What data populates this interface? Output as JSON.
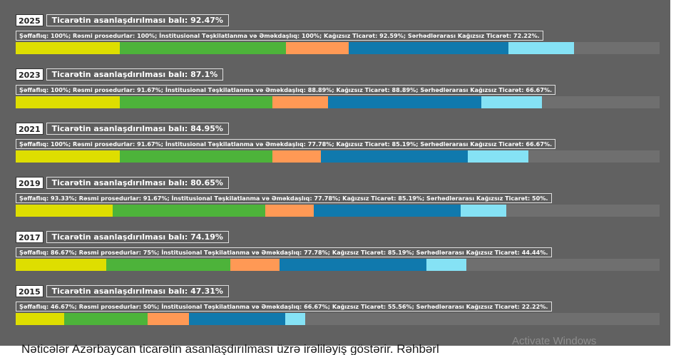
{
  "colors": {
    "panel_bg": "#616161",
    "bar_track": "#6f6f6f",
    "components": [
      "#dede00",
      "#4db33a",
      "#ff9955",
      "#1079ad",
      "#85e2f5"
    ]
  },
  "components": [
    "Şəffaflıq",
    "Rəsmi prosedurlar",
    "İnstitusional Təşkilatlanma və Əməkdaşlıq",
    "Kağızsız Ticarət",
    "Sərhədlərarası Kağızsız Ticarət"
  ],
  "years": [
    {
      "year": "2025",
      "score_label": "Ticarətin asanlaşdırılması balı: 92.47%",
      "detail": "Şəffaflıq: 100%; Rəsmi prosedurlar: 100%; İnstitusional Təşkilatlanma və Əməkdaşlıq: 100%; Kağızsız Ticarət: 92.59%; Sərhədlərarası Kağızsız Ticarət: 72.22%.",
      "values": [
        100,
        100,
        100,
        92.59,
        72.22
      ]
    },
    {
      "year": "2023",
      "score_label": "Ticarətin asanlaşdırılması balı: 87.1%",
      "detail": "Şəffaflıq: 100%; Rəsmi prosedurlar: 91.67%; İnstitusional Təşkilatlanma və Əməkdaşlıq: 88.89%; Kağızsız Ticarət: 88.89%; Sərhədlərarası Kağızsız Ticarət: 66.67%.",
      "values": [
        100,
        91.67,
        88.89,
        88.89,
        66.67
      ]
    },
    {
      "year": "2021",
      "score_label": "Ticarətin asanlaşdırılması balı: 84.95%",
      "detail": "Şəffaflıq: 100%; Rəsmi prosedurlar: 91.67%; İnstitusional Təşkilatlanma və Əməkdaşlıq: 77.78%; Kağızsız Ticarət: 85.19%; Sərhədlərarası Kağızsız Ticarət: 66.67%.",
      "values": [
        100,
        91.67,
        77.78,
        85.19,
        66.67
      ]
    },
    {
      "year": "2019",
      "score_label": "Ticarətin asanlaşdırılması balı: 80.65%",
      "detail": "Şəffaflıq: 93.33%; Rəsmi prosedurlar: 91.67%; İnstitusional Təşkilatlanma və Əməkdaşlıq: 77.78%; Kağızsız Ticarət: 85.19%; Sərhədlərarası Kağızsız Ticarət: 50%.",
      "values": [
        93.33,
        91.67,
        77.78,
        85.19,
        50
      ]
    },
    {
      "year": "2017",
      "score_label": "Ticarətin asanlaşdırılması balı: 74.19%",
      "detail": "Şəffaflıq: 86.67%; Rəsmi prosedurlar: 75%; İnstitusional Təşkilatlanma və Əməkdaşlıq: 77.78%; Kağızsız Ticarət: 85.19%; Sərhədlərarası Kağızsız Ticarət: 44.44%.",
      "values": [
        86.67,
        75,
        77.78,
        85.19,
        44.44
      ]
    },
    {
      "year": "2015",
      "score_label": "Ticarətin asanlaşdırılması balı: 47.31%",
      "detail": "Şəffaflıq: 46.67%; Rəsmi prosedurlar: 50%; İnstitusional Təşkilatlanma və Əməkdaşlıq: 66.67%; Kağızsız Ticarət: 55.56%; Sərhədlərarası Kağızsız Ticarət: 22.22%.",
      "values": [
        46.67,
        50,
        66.67,
        55.56,
        22.22
      ]
    }
  ],
  "watermark": "Activate Windows",
  "bottom_text": "Nəticələr Azərbaycan ticarətin asanlaşdırılması üzrə irəliləyiş göstərir. Rəhbərl"
}
